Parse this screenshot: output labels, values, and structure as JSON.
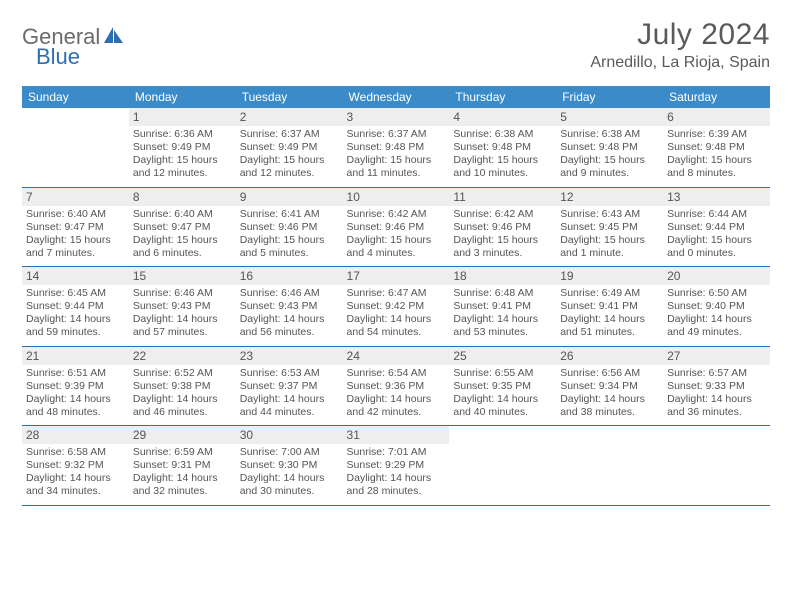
{
  "logo": {
    "word1": "General",
    "word2": "Blue"
  },
  "title": "July 2024",
  "location": "Arnedillo, La Rioja, Spain",
  "colors": {
    "header_bg": "#3b8bc9",
    "header_text": "#ffffff",
    "accent": "#2f6fb0",
    "daynum_bg": "#eeeeee",
    "text": "#555555",
    "page_bg": "#ffffff"
  },
  "font": {
    "family": "Arial",
    "title_size": 30,
    "location_size": 16,
    "header_size": 12,
    "body_size": 10.5
  },
  "weekdays": [
    "Sunday",
    "Monday",
    "Tuesday",
    "Wednesday",
    "Thursday",
    "Friday",
    "Saturday"
  ],
  "weeks": [
    [
      null,
      {
        "n": "1",
        "sr": "Sunrise: 6:36 AM",
        "ss": "Sunset: 9:49 PM",
        "d1": "Daylight: 15 hours",
        "d2": "and 12 minutes."
      },
      {
        "n": "2",
        "sr": "Sunrise: 6:37 AM",
        "ss": "Sunset: 9:49 PM",
        "d1": "Daylight: 15 hours",
        "d2": "and 12 minutes."
      },
      {
        "n": "3",
        "sr": "Sunrise: 6:37 AM",
        "ss": "Sunset: 9:48 PM",
        "d1": "Daylight: 15 hours",
        "d2": "and 11 minutes."
      },
      {
        "n": "4",
        "sr": "Sunrise: 6:38 AM",
        "ss": "Sunset: 9:48 PM",
        "d1": "Daylight: 15 hours",
        "d2": "and 10 minutes."
      },
      {
        "n": "5",
        "sr": "Sunrise: 6:38 AM",
        "ss": "Sunset: 9:48 PM",
        "d1": "Daylight: 15 hours",
        "d2": "and 9 minutes."
      },
      {
        "n": "6",
        "sr": "Sunrise: 6:39 AM",
        "ss": "Sunset: 9:48 PM",
        "d1": "Daylight: 15 hours",
        "d2": "and 8 minutes."
      }
    ],
    [
      {
        "n": "7",
        "sr": "Sunrise: 6:40 AM",
        "ss": "Sunset: 9:47 PM",
        "d1": "Daylight: 15 hours",
        "d2": "and 7 minutes."
      },
      {
        "n": "8",
        "sr": "Sunrise: 6:40 AM",
        "ss": "Sunset: 9:47 PM",
        "d1": "Daylight: 15 hours",
        "d2": "and 6 minutes."
      },
      {
        "n": "9",
        "sr": "Sunrise: 6:41 AM",
        "ss": "Sunset: 9:46 PM",
        "d1": "Daylight: 15 hours",
        "d2": "and 5 minutes."
      },
      {
        "n": "10",
        "sr": "Sunrise: 6:42 AM",
        "ss": "Sunset: 9:46 PM",
        "d1": "Daylight: 15 hours",
        "d2": "and 4 minutes."
      },
      {
        "n": "11",
        "sr": "Sunrise: 6:42 AM",
        "ss": "Sunset: 9:46 PM",
        "d1": "Daylight: 15 hours",
        "d2": "and 3 minutes."
      },
      {
        "n": "12",
        "sr": "Sunrise: 6:43 AM",
        "ss": "Sunset: 9:45 PM",
        "d1": "Daylight: 15 hours",
        "d2": "and 1 minute."
      },
      {
        "n": "13",
        "sr": "Sunrise: 6:44 AM",
        "ss": "Sunset: 9:44 PM",
        "d1": "Daylight: 15 hours",
        "d2": "and 0 minutes."
      }
    ],
    [
      {
        "n": "14",
        "sr": "Sunrise: 6:45 AM",
        "ss": "Sunset: 9:44 PM",
        "d1": "Daylight: 14 hours",
        "d2": "and 59 minutes."
      },
      {
        "n": "15",
        "sr": "Sunrise: 6:46 AM",
        "ss": "Sunset: 9:43 PM",
        "d1": "Daylight: 14 hours",
        "d2": "and 57 minutes."
      },
      {
        "n": "16",
        "sr": "Sunrise: 6:46 AM",
        "ss": "Sunset: 9:43 PM",
        "d1": "Daylight: 14 hours",
        "d2": "and 56 minutes."
      },
      {
        "n": "17",
        "sr": "Sunrise: 6:47 AM",
        "ss": "Sunset: 9:42 PM",
        "d1": "Daylight: 14 hours",
        "d2": "and 54 minutes."
      },
      {
        "n": "18",
        "sr": "Sunrise: 6:48 AM",
        "ss": "Sunset: 9:41 PM",
        "d1": "Daylight: 14 hours",
        "d2": "and 53 minutes."
      },
      {
        "n": "19",
        "sr": "Sunrise: 6:49 AM",
        "ss": "Sunset: 9:41 PM",
        "d1": "Daylight: 14 hours",
        "d2": "and 51 minutes."
      },
      {
        "n": "20",
        "sr": "Sunrise: 6:50 AM",
        "ss": "Sunset: 9:40 PM",
        "d1": "Daylight: 14 hours",
        "d2": "and 49 minutes."
      }
    ],
    [
      {
        "n": "21",
        "sr": "Sunrise: 6:51 AM",
        "ss": "Sunset: 9:39 PM",
        "d1": "Daylight: 14 hours",
        "d2": "and 48 minutes."
      },
      {
        "n": "22",
        "sr": "Sunrise: 6:52 AM",
        "ss": "Sunset: 9:38 PM",
        "d1": "Daylight: 14 hours",
        "d2": "and 46 minutes."
      },
      {
        "n": "23",
        "sr": "Sunrise: 6:53 AM",
        "ss": "Sunset: 9:37 PM",
        "d1": "Daylight: 14 hours",
        "d2": "and 44 minutes."
      },
      {
        "n": "24",
        "sr": "Sunrise: 6:54 AM",
        "ss": "Sunset: 9:36 PM",
        "d1": "Daylight: 14 hours",
        "d2": "and 42 minutes."
      },
      {
        "n": "25",
        "sr": "Sunrise: 6:55 AM",
        "ss": "Sunset: 9:35 PM",
        "d1": "Daylight: 14 hours",
        "d2": "and 40 minutes."
      },
      {
        "n": "26",
        "sr": "Sunrise: 6:56 AM",
        "ss": "Sunset: 9:34 PM",
        "d1": "Daylight: 14 hours",
        "d2": "and 38 minutes."
      },
      {
        "n": "27",
        "sr": "Sunrise: 6:57 AM",
        "ss": "Sunset: 9:33 PM",
        "d1": "Daylight: 14 hours",
        "d2": "and 36 minutes."
      }
    ],
    [
      {
        "n": "28",
        "sr": "Sunrise: 6:58 AM",
        "ss": "Sunset: 9:32 PM",
        "d1": "Daylight: 14 hours",
        "d2": "and 34 minutes."
      },
      {
        "n": "29",
        "sr": "Sunrise: 6:59 AM",
        "ss": "Sunset: 9:31 PM",
        "d1": "Daylight: 14 hours",
        "d2": "and 32 minutes."
      },
      {
        "n": "30",
        "sr": "Sunrise: 7:00 AM",
        "ss": "Sunset: 9:30 PM",
        "d1": "Daylight: 14 hours",
        "d2": "and 30 minutes."
      },
      {
        "n": "31",
        "sr": "Sunrise: 7:01 AM",
        "ss": "Sunset: 9:29 PM",
        "d1": "Daylight: 14 hours",
        "d2": "and 28 minutes."
      },
      null,
      null,
      null
    ]
  ]
}
